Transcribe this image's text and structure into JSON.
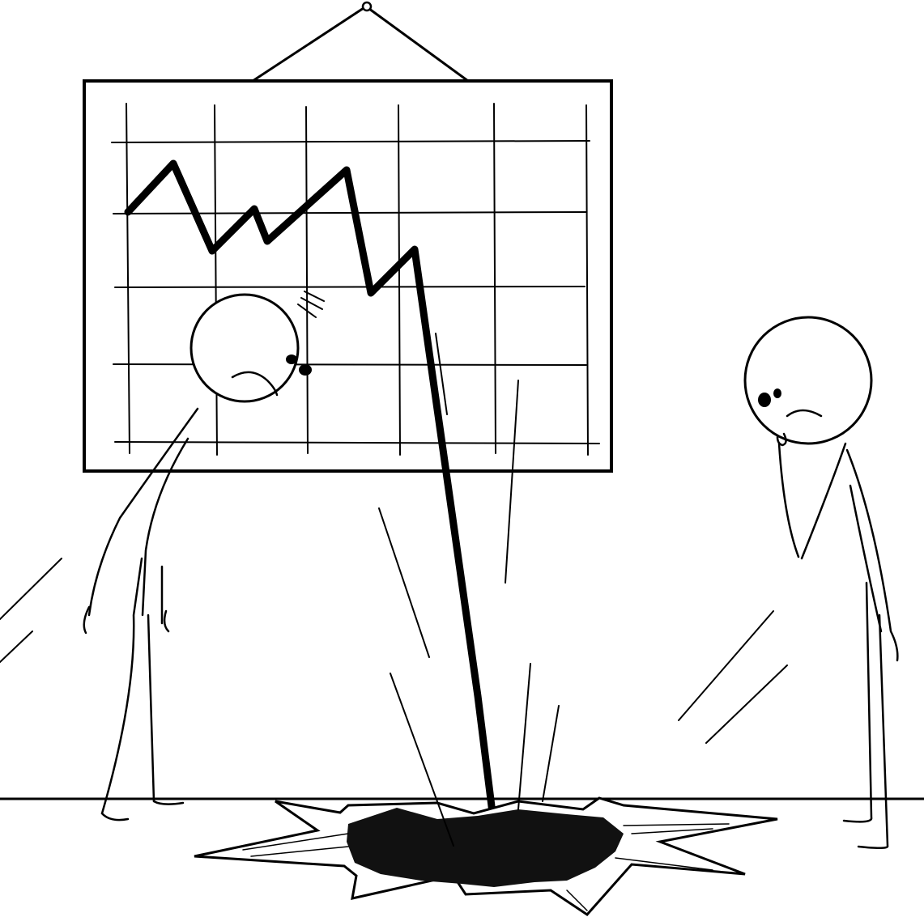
{
  "scene": {
    "background_color": "#ffffff",
    "ink_color": "#000000",
    "chart_board": {
      "grid_columns": 6,
      "grid_rows": 5
    }
  }
}
